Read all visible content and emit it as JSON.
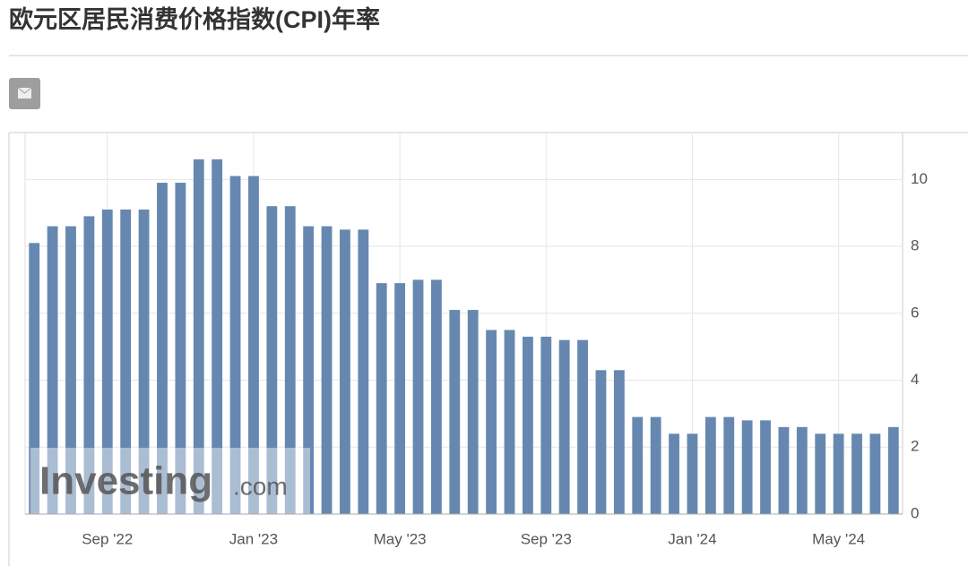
{
  "chart_data": {
    "type": "bar",
    "title": "欧元区居民消费价格指数(CPI)年率",
    "watermark": {
      "brand": "Investing",
      "suffix": ".com"
    },
    "categories": [
      null,
      null,
      null,
      null,
      "Sep '22",
      null,
      null,
      null,
      null,
      null,
      null,
      null,
      "Jan '23",
      null,
      null,
      null,
      null,
      null,
      null,
      null,
      "May '23",
      null,
      null,
      null,
      null,
      null,
      null,
      null,
      "Sep '23",
      null,
      null,
      null,
      null,
      null,
      null,
      null,
      "Jan '24",
      null,
      null,
      null,
      null,
      null,
      null,
      null,
      "May '24",
      null,
      null,
      null
    ],
    "values": [
      8.1,
      8.6,
      8.6,
      8.9,
      9.1,
      9.1,
      9.1,
      9.9,
      9.9,
      10.6,
      10.6,
      10.1,
      10.1,
      9.2,
      9.2,
      8.6,
      8.6,
      8.5,
      8.5,
      6.9,
      6.9,
      7.0,
      7.0,
      6.1,
      6.1,
      5.5,
      5.5,
      5.3,
      5.3,
      5.2,
      5.2,
      4.3,
      4.3,
      2.9,
      2.9,
      2.4,
      2.4,
      2.9,
      2.9,
      2.8,
      2.8,
      2.6,
      2.6,
      2.4,
      2.4,
      2.4,
      2.4,
      2.6
    ],
    "color": "#6688b0",
    "ylim": [
      0,
      11.4
    ],
    "yticks": [
      0,
      2,
      4,
      6,
      8,
      10
    ],
    "grid": true
  }
}
